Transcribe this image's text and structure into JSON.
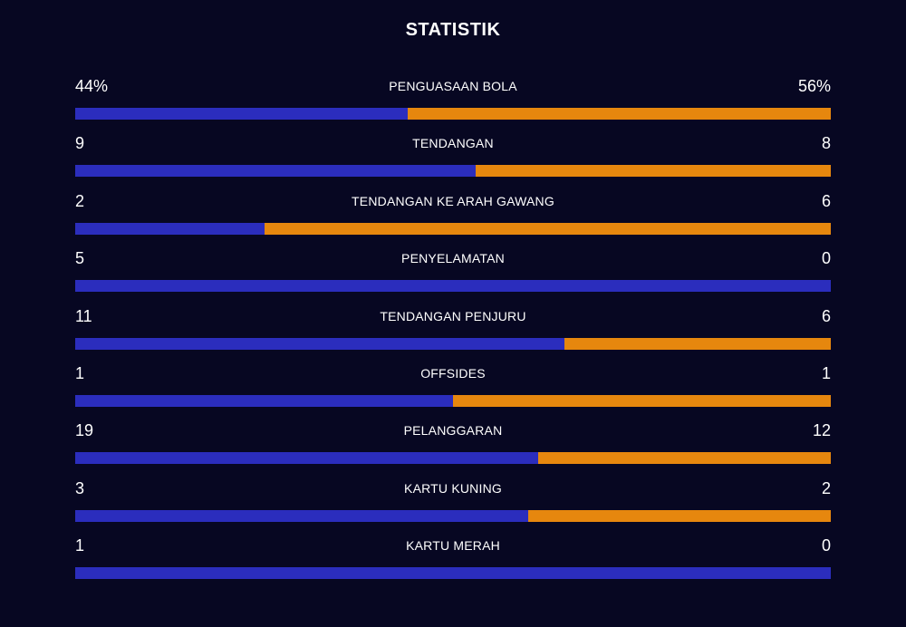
{
  "title": "STATISTIK",
  "colors": {
    "background": "#070722",
    "home": "#2b2dbd",
    "away": "#e6870e",
    "text": "#ffffff"
  },
  "chart_data": {
    "type": "bar",
    "title": "STATISTIK",
    "categories": [
      "PENGUASAAN BOLA",
      "TENDANGAN",
      "TENDANGAN KE ARAH GAWANG",
      "PENYELAMATAN",
      "TENDANGAN PENJURU",
      "OFFSIDES",
      "PELANGGARAN",
      "KARTU KUNING",
      "KARTU MERAH"
    ],
    "series": [
      {
        "values": [
          44,
          9,
          2,
          5,
          11,
          1,
          19,
          3,
          1
        ]
      },
      {
        "values": [
          56,
          8,
          6,
          0,
          6,
          1,
          12,
          2,
          0
        ]
      }
    ],
    "display": {
      "left": [
        "44%",
        "9",
        "2",
        "5",
        "11",
        "1",
        "19",
        "3",
        "1"
      ],
      "right": [
        "56%",
        "8",
        "6",
        "0",
        "6",
        "1",
        "12",
        "2",
        "0"
      ]
    }
  }
}
